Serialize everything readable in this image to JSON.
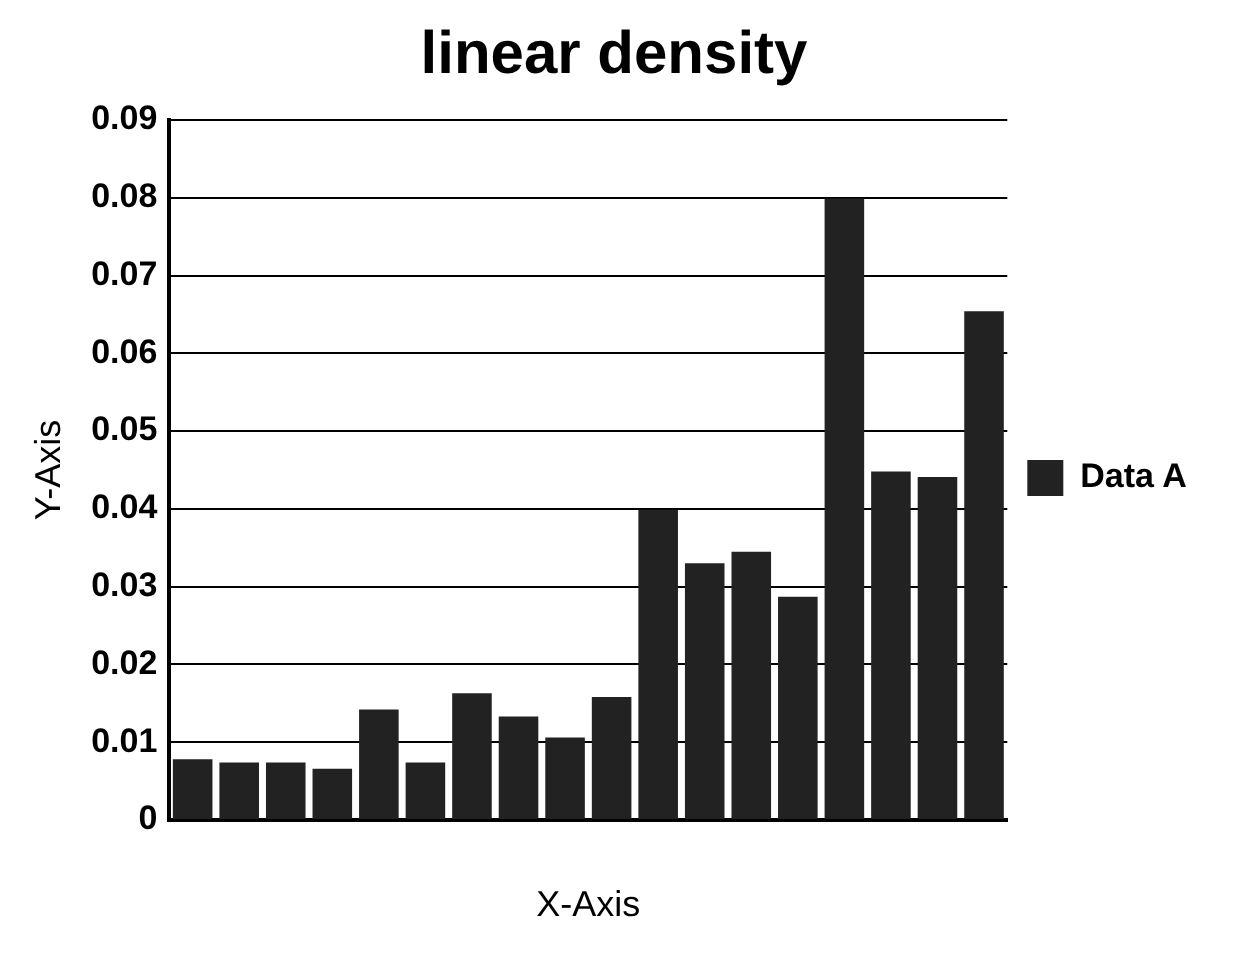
{
  "chart_data": {
    "type": "bar",
    "title": "linear density",
    "xlabel": "X-Axis",
    "ylabel": "Y-Axis",
    "categories": [
      null,
      null,
      null,
      null,
      null,
      null,
      null,
      null,
      null,
      null,
      null,
      null,
      null,
      null,
      null,
      null,
      null,
      null
    ],
    "series": [
      {
        "name": "Data A",
        "color": "#222222",
        "values": [
          0.0078,
          0.0074,
          0.0074,
          0.0066,
          0.0142,
          0.0074,
          0.0163,
          0.0133,
          0.0106,
          0.0158,
          0.0399,
          0.033,
          0.0345,
          0.0287,
          0.0799,
          0.0448,
          0.0441,
          0.0654
        ]
      }
    ],
    "ylim": [
      0,
      0.09
    ],
    "yticks": [
      0,
      0.01,
      0.02,
      0.03,
      0.04,
      0.05,
      0.06,
      0.07,
      0.08,
      0.09
    ],
    "grid": "y",
    "legend": "right"
  }
}
